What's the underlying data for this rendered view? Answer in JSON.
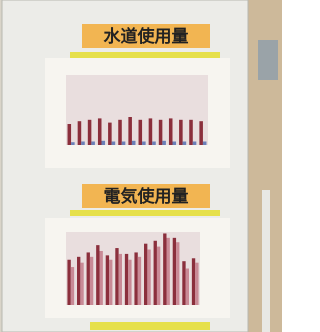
{
  "panels": [
    {
      "title": "水道使用量",
      "ylim": [
        0,
        100
      ],
      "series": [
        {
          "color": "#8b2f3c",
          "values": [
            30,
            34,
            36,
            38,
            32,
            36,
            40,
            36,
            38,
            36,
            38,
            36,
            36,
            34
          ]
        },
        {
          "color": "#6a7fb8",
          "values": [
            4,
            5,
            5,
            6,
            5,
            5,
            6,
            5,
            5,
            6,
            5,
            5,
            5,
            5
          ]
        }
      ]
    },
    {
      "title": "電気使用量",
      "ylim": [
        0,
        100
      ],
      "series": [
        {
          "color": "#8b2f3c",
          "values": [
            62,
            66,
            72,
            82,
            68,
            78,
            70,
            72,
            84,
            88,
            98,
            92,
            60,
            64
          ]
        },
        {
          "color": "#c98a96",
          "values": [
            52,
            58,
            66,
            74,
            62,
            70,
            62,
            66,
            76,
            80,
            92,
            86,
            50,
            58
          ]
        }
      ]
    }
  ]
}
